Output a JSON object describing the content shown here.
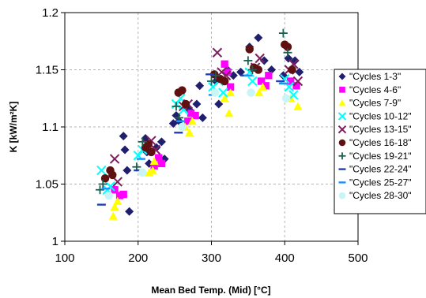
{
  "chart_data": {
    "type": "scatter",
    "xlabel": "Mean Bed Temp. (Mid) [°C]",
    "ylabel": "K [kW/m²K]",
    "xlim": [
      100,
      500
    ],
    "ylim": [
      1,
      1.2
    ],
    "x_ticks": [
      "100",
      "200",
      "300",
      "400",
      "500"
    ],
    "y_ticks": [
      "1",
      "1.05",
      "1.1",
      "1.15",
      "1.2"
    ],
    "grid": "dashed",
    "legend_position": "right",
    "series": [
      {
        "name": "\"Cycles 1-3\"",
        "marker": "diamond",
        "color": "#1f1f6e",
        "points": [
          [
            180,
            1.092
          ],
          [
            182,
            1.08
          ],
          [
            188,
            1.026
          ],
          [
            185,
            1.062
          ],
          [
            210,
            1.09
          ],
          [
            212,
            1.078
          ],
          [
            215,
            1.068
          ],
          [
            225,
            1.082
          ],
          [
            232,
            1.087
          ],
          [
            236,
            1.072
          ],
          [
            248,
            1.103
          ],
          [
            252,
            1.11
          ],
          [
            256,
            1.105
          ],
          [
            270,
            1.115
          ],
          [
            280,
            1.12
          ],
          [
            284,
            1.136
          ],
          [
            288,
            1.108
          ],
          [
            306,
            1.14
          ],
          [
            310,
            1.12
          ],
          [
            322,
            1.15
          ],
          [
            330,
            1.145
          ],
          [
            340,
            1.148
          ],
          [
            352,
            1.17
          ],
          [
            364,
            1.178
          ],
          [
            372,
            1.158
          ],
          [
            382,
            1.15
          ],
          [
            398,
            1.145
          ],
          [
            405,
            1.16
          ],
          [
            414,
            1.158
          ],
          [
            420,
            1.148
          ]
        ]
      },
      {
        "name": "\"Cycles 4-6\"",
        "marker": "square",
        "color": "#ff00ff",
        "points": [
          [
            168,
            1.045
          ],
          [
            175,
            1.04
          ],
          [
            180,
            1.041
          ],
          [
            222,
            1.066
          ],
          [
            228,
            1.073
          ],
          [
            232,
            1.068
          ],
          [
            268,
            1.105
          ],
          [
            272,
            1.112
          ],
          [
            278,
            1.11
          ],
          [
            318,
            1.155
          ],
          [
            322,
            1.148
          ],
          [
            326,
            1.135
          ],
          [
            368,
            1.14
          ],
          [
            374,
            1.136
          ],
          [
            378,
            1.145
          ],
          [
            408,
            1.14
          ],
          [
            416,
            1.136
          ]
        ]
      },
      {
        "name": "\"Cycles 7-9\"",
        "marker": "triangle",
        "color": "#ffff00",
        "points": [
          [
            166,
            1.022
          ],
          [
            168,
            1.03
          ],
          [
            172,
            1.035
          ],
          [
            215,
            1.06
          ],
          [
            220,
            1.062
          ],
          [
            222,
            1.07
          ],
          [
            264,
            1.1
          ],
          [
            270,
            1.095
          ],
          [
            274,
            1.105
          ],
          [
            318,
            1.125
          ],
          [
            324,
            1.112
          ],
          [
            326,
            1.13
          ],
          [
            365,
            1.13
          ],
          [
            370,
            1.135
          ],
          [
            408,
            1.125
          ],
          [
            418,
            1.118
          ]
        ]
      },
      {
        "name": "\"Cycles 10-12\"",
        "marker": "x",
        "color": "#00ffff",
        "points": [
          [
            150,
            1.062
          ],
          [
            158,
            1.045
          ],
          [
            162,
            1.048
          ],
          [
            200,
            1.075
          ],
          [
            206,
            1.08
          ],
          [
            252,
            1.12
          ],
          [
            258,
            1.125
          ],
          [
            262,
            1.115
          ],
          [
            302,
            1.135
          ],
          [
            310,
            1.14
          ],
          [
            316,
            1.13
          ],
          [
            352,
            1.148
          ],
          [
            356,
            1.14
          ],
          [
            400,
            1.142
          ],
          [
            406,
            1.135
          ],
          [
            412,
            1.128
          ]
        ]
      },
      {
        "name": "\"Cycles 13-15\"",
        "marker": "x",
        "color": "#7f1f5f",
        "points": [
          [
            168,
            1.072
          ],
          [
            172,
            1.052
          ],
          [
            212,
            1.085
          ],
          [
            218,
            1.088
          ],
          [
            224,
            1.08
          ],
          [
            262,
            1.118
          ],
          [
            268,
            1.12
          ],
          [
            308,
            1.165
          ],
          [
            314,
            1.148
          ],
          [
            320,
            1.145
          ],
          [
            360,
            1.152
          ],
          [
            366,
            1.16
          ],
          [
            406,
            1.15
          ],
          [
            412,
            1.155
          ],
          [
            418,
            1.14
          ]
        ]
      },
      {
        "name": "\"Cycles 16-18\"",
        "marker": "circle",
        "color": "#5f1010",
        "points": [
          [
            155,
            1.055
          ],
          [
            162,
            1.062
          ],
          [
            165,
            1.058
          ],
          [
            210,
            1.082
          ],
          [
            214,
            1.085
          ],
          [
            218,
            1.078
          ],
          [
            255,
            1.13
          ],
          [
            260,
            1.132
          ],
          [
            265,
            1.12
          ],
          [
            304,
            1.146
          ],
          [
            312,
            1.142
          ],
          [
            318,
            1.14
          ],
          [
            352,
            1.168
          ],
          [
            358,
            1.152
          ],
          [
            364,
            1.15
          ],
          [
            400,
            1.172
          ],
          [
            404,
            1.17
          ],
          [
            410,
            1.15
          ]
        ]
      },
      {
        "name": "\"Cycles 19-21\"",
        "marker": "plus",
        "color": "#1a6050",
        "points": [
          [
            148,
            1.045
          ],
          [
            152,
            1.05
          ],
          [
            198,
            1.065
          ],
          [
            206,
            1.087
          ],
          [
            252,
            1.118
          ],
          [
            256,
            1.108
          ],
          [
            300,
            1.14
          ],
          [
            306,
            1.145
          ],
          [
            350,
            1.158
          ],
          [
            356,
            1.15
          ],
          [
            398,
            1.182
          ],
          [
            404,
            1.165
          ]
        ]
      },
      {
        "name": "\"Cycles 22-24\"",
        "marker": "dash",
        "color": "#1f3fbf",
        "points": [
          [
            150,
            1.032
          ],
          [
            200,
            1.062
          ],
          [
            255,
            1.095
          ],
          [
            298,
            1.146
          ],
          [
            346,
            1.145
          ],
          [
            394,
            1.14
          ]
        ]
      },
      {
        "name": "\"Cycles 25-27\"",
        "marker": "dash",
        "color": "#2090ff",
        "points": [
          [
            156,
            1.046
          ],
          [
            204,
            1.072
          ],
          [
            258,
            1.105
          ],
          [
            302,
            1.128
          ],
          [
            350,
            1.145
          ],
          [
            398,
            1.138
          ]
        ]
      },
      {
        "name": "\"Cycles 28-30\"",
        "marker": "circle",
        "color": "#c8f5f5",
        "points": [
          [
            160,
            1.04
          ],
          [
            206,
            1.06
          ],
          [
            260,
            1.1
          ],
          [
            305,
            1.13
          ],
          [
            354,
            1.13
          ],
          [
            402,
            1.125
          ]
        ]
      }
    ]
  }
}
